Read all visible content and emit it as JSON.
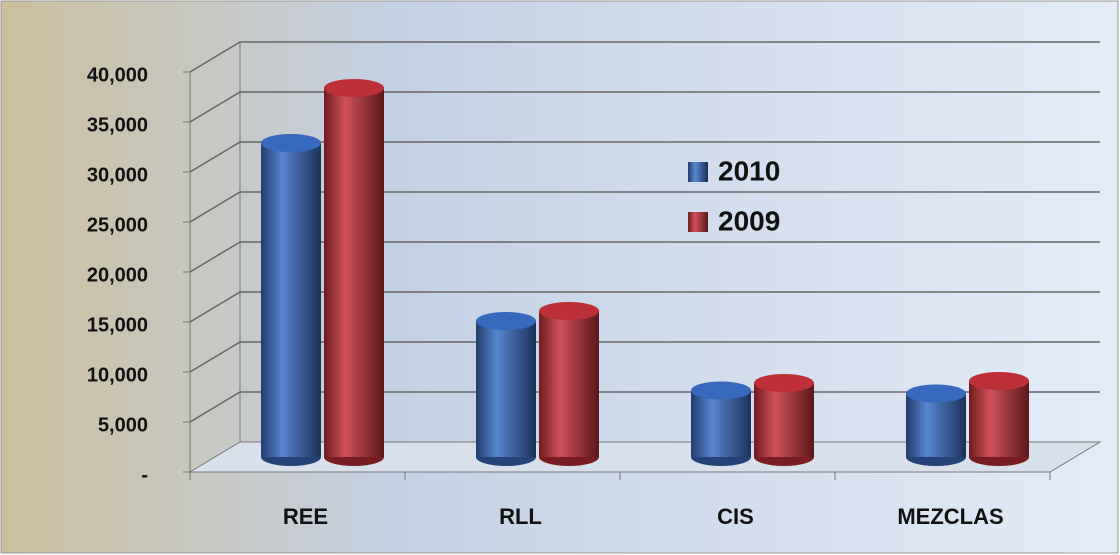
{
  "chart_data": {
    "type": "bar3d",
    "categories": [
      "REE",
      "RLL",
      "CIS",
      "MEZCLAS"
    ],
    "series": [
      {
        "name": "2010",
        "color": "#3a6fc6",
        "values": [
          31400,
          13600,
          6650,
          6350
        ]
      },
      {
        "name": "2009",
        "color": "#c8323a",
        "values": [
          36900,
          14600,
          7400,
          7600
        ]
      }
    ],
    "ylim": [
      0,
      40000
    ],
    "yticks": [
      {
        "value": 0,
        "label": "-"
      },
      {
        "value": 5000,
        "label": "5,000"
      },
      {
        "value": 10000,
        "label": "10,000"
      },
      {
        "value": 15000,
        "label": "15,000"
      },
      {
        "value": 20000,
        "label": "20,000"
      },
      {
        "value": 25000,
        "label": "25,000"
      },
      {
        "value": 30000,
        "label": "30,000"
      },
      {
        "value": 35000,
        "label": "35,000"
      },
      {
        "value": 40000,
        "label": "40,000"
      }
    ],
    "grid": true
  }
}
